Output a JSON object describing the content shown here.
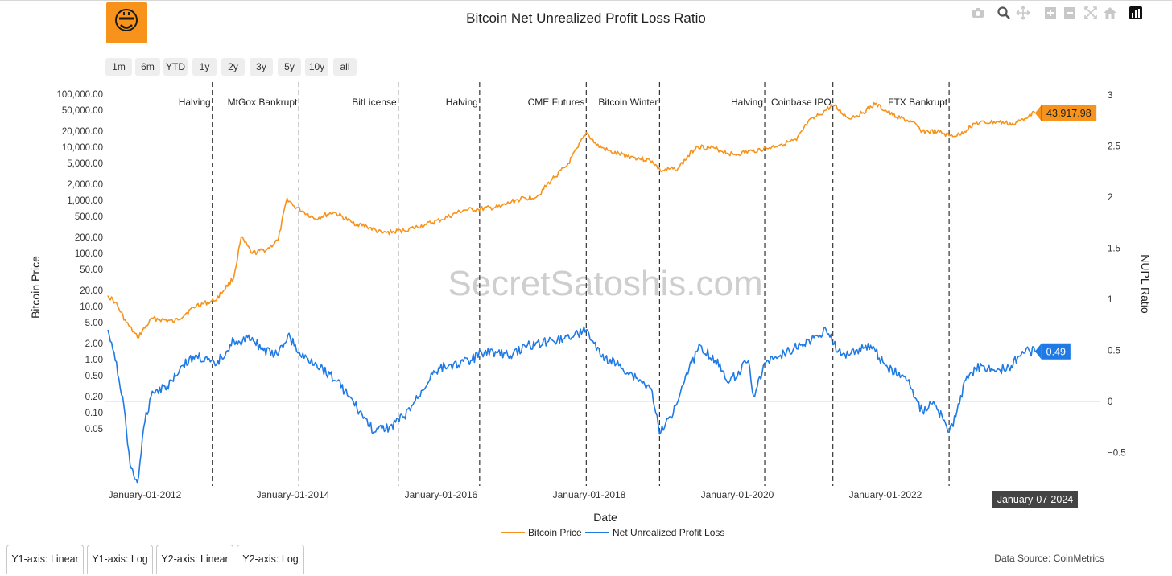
{
  "title": "Bitcoin Net Unrealized Profit Loss Ratio",
  "watermark": "SecretSatoshis.com",
  "logo_icon": "bitcoin-smiley-logo-icon",
  "range_buttons": [
    "1m",
    "6m",
    "YTD",
    "1y",
    "2y",
    "3y",
    "5y",
    "10y",
    "all"
  ],
  "bottom_tabs": [
    "Y1-axis: Linear",
    "Y1-axis: Log",
    "Y2-axis: Linear",
    "Y2-axis: Log"
  ],
  "data_source": "Data Source: CoinMetrics",
  "modebar_icons": [
    "camera-icon",
    "zoom-icon",
    "pan-icon",
    "zoom-in-icon",
    "zoom-out-icon",
    "autoscale-icon",
    "home-icon",
    "plotly-logo-icon"
  ],
  "colors": {
    "price": "#f7931a",
    "nupl": "#1f7ae6",
    "zero_line": "#dbe6f5",
    "event_line": "#333333"
  },
  "chart_data": {
    "type": "line",
    "title": "Bitcoin Net Unrealized Profit Loss Ratio",
    "xlabel": "Date",
    "ylabel": "Bitcoin Price",
    "y2label": "NUPL Ratio",
    "xrange": [
      2011.5,
      2024.55
    ],
    "y_scale": "log",
    "y_ticks": [
      "100,000.00",
      "50,000.00",
      "20,000.00",
      "10,000.00",
      "5,000.00",
      "2,000.00",
      "1,000.00",
      "500.00",
      "200.00",
      "100.00",
      "50.00",
      "20.00",
      "10.00",
      "5.00",
      "2.00",
      "1.00",
      "0.50",
      "0.20",
      "0.10",
      "0.05"
    ],
    "y2_ticks": [
      "3",
      "2.5",
      "2",
      "1.5",
      "1",
      "0.5",
      "0",
      "−0.5"
    ],
    "x_ticks": [
      "January-01-2012",
      "January-01-2014",
      "January-01-2016",
      "January-01-2018",
      "January-01-2020",
      "January-01-2022"
    ],
    "events": [
      {
        "label": "Halving",
        "date": 2012.91
      },
      {
        "label": "MtGox Bankrupt",
        "date": 2014.08
      },
      {
        "label": "BitLicense",
        "date": 2015.42
      },
      {
        "label": "Halving",
        "date": 2016.52
      },
      {
        "label": "CME Futures",
        "date": 2017.96
      },
      {
        "label": "Bitcoin Winter",
        "date": 2018.95
      },
      {
        "label": "Halving",
        "date": 2020.37
      },
      {
        "label": "Coinbase IPO",
        "date": 2021.29
      },
      {
        "label": "FTX Bankrupt",
        "date": 2022.86
      }
    ],
    "series": [
      {
        "name": "Bitcoin Price",
        "axis": "y1",
        "x": [
          2011.5,
          2011.6,
          2011.75,
          2011.9,
          2012.1,
          2012.4,
          2012.7,
          2012.95,
          2013.2,
          2013.3,
          2013.45,
          2013.65,
          2013.8,
          2013.92,
          2014.0,
          2014.15,
          2014.3,
          2014.55,
          2014.8,
          2015.0,
          2015.2,
          2015.5,
          2015.8,
          2016.0,
          2016.3,
          2016.5,
          2016.8,
          2017.0,
          2017.3,
          2017.5,
          2017.7,
          2017.85,
          2017.96,
          2018.1,
          2018.3,
          2018.6,
          2018.85,
          2018.96,
          2019.2,
          2019.45,
          2019.7,
          2019.95,
          2020.2,
          2020.4,
          2020.6,
          2020.8,
          2020.95,
          2021.1,
          2021.29,
          2021.5,
          2021.7,
          2021.86,
          2022.1,
          2022.35,
          2022.5,
          2022.7,
          2022.86,
          2023.0,
          2023.2,
          2023.5,
          2023.75,
          2023.95,
          2024.02
        ],
        "values": [
          16,
          12,
          5,
          2.6,
          6,
          5.2,
          10.5,
          13,
          35,
          200,
          100,
          120,
          180,
          1100,
          800,
          600,
          450,
          600,
          380,
          320,
          240,
          270,
          350,
          430,
          650,
          680,
          750,
          1000,
          1200,
          2500,
          4500,
          10000,
          19000,
          11000,
          8000,
          6500,
          5500,
          3600,
          4000,
          10500,
          9500,
          7200,
          8500,
          9500,
          11500,
          13500,
          29000,
          40000,
          62000,
          35000,
          45000,
          65000,
          40000,
          30000,
          20000,
          19500,
          16500,
          17000,
          28000,
          30000,
          27000,
          42000,
          43917.98
        ],
        "last_label": "43,917.98"
      },
      {
        "name": "Net Unrealized Profit Loss",
        "axis": "y2",
        "x": [
          2011.5,
          2011.6,
          2011.7,
          2011.8,
          2011.9,
          2012.0,
          2012.1,
          2012.3,
          2012.5,
          2012.7,
          2012.95,
          2013.2,
          2013.3,
          2013.4,
          2013.6,
          2013.8,
          2013.93,
          2014.1,
          2014.3,
          2014.6,
          2014.9,
          2015.1,
          2015.3,
          2015.5,
          2015.7,
          2015.9,
          2016.1,
          2016.4,
          2016.6,
          2016.9,
          2017.2,
          2017.5,
          2017.8,
          2017.96,
          2018.15,
          2018.4,
          2018.7,
          2018.85,
          2018.95,
          2019.1,
          2019.3,
          2019.5,
          2019.7,
          2019.9,
          2020.15,
          2020.22,
          2020.4,
          2020.7,
          2021.0,
          2021.2,
          2021.4,
          2021.6,
          2021.8,
          2022.0,
          2022.3,
          2022.5,
          2022.65,
          2022.86,
          2022.95,
          2023.1,
          2023.3,
          2023.5,
          2023.7,
          2023.85,
          2024.02
        ],
        "values": [
          0.7,
          0.4,
          0.05,
          -0.62,
          -0.8,
          -0.2,
          0.1,
          0.15,
          0.35,
          0.45,
          0.35,
          0.6,
          0.55,
          0.65,
          0.5,
          0.45,
          0.65,
          0.45,
          0.38,
          0.2,
          -0.1,
          -0.3,
          -0.25,
          -0.15,
          0.05,
          0.3,
          0.35,
          0.4,
          0.5,
          0.45,
          0.55,
          0.6,
          0.65,
          0.7,
          0.45,
          0.35,
          0.2,
          0.1,
          -0.32,
          -0.15,
          0.25,
          0.55,
          0.4,
          0.2,
          0.4,
          0.05,
          0.4,
          0.5,
          0.6,
          0.7,
          0.45,
          0.5,
          0.55,
          0.35,
          0.2,
          -0.1,
          0.0,
          -0.3,
          -0.15,
          0.25,
          0.35,
          0.3,
          0.35,
          0.49,
          0.49
        ],
        "last_label": "0.49"
      }
    ],
    "hover_date": "January-07-2024",
    "legend_position": "bottom-center"
  }
}
